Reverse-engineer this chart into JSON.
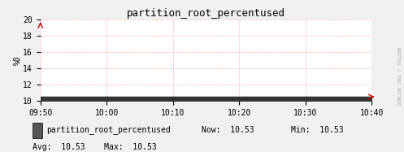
{
  "title": "partition_root_percentused",
  "bg_color": "#f0f0f0",
  "plot_bg_color": "#ffffff",
  "line_color": "#333333",
  "fill_color": "#333333",
  "grid_color": "#ff9999",
  "grid_style": "dotted",
  "ylim": [
    10,
    20
  ],
  "yticks": [
    10,
    12,
    14,
    16,
    18,
    20
  ],
  "ylabel": "%0",
  "xtick_labels": [
    "09:50",
    "10:00",
    "10:10",
    "10:20",
    "10:30",
    "10:40"
  ],
  "value": 10.53,
  "legend_label": "partition_root_percentused",
  "legend_box_color": "#555555",
  "now_val": "10.53",
  "min_val": "10.53",
  "avg_val": "10.53",
  "max_val": "10.53",
  "right_label": "RRDTOOL / TOBI OETIKER",
  "arrow_color": "#cc0000",
  "title_fontsize": 9,
  "tick_fontsize": 7,
  "legend_fontsize": 7
}
